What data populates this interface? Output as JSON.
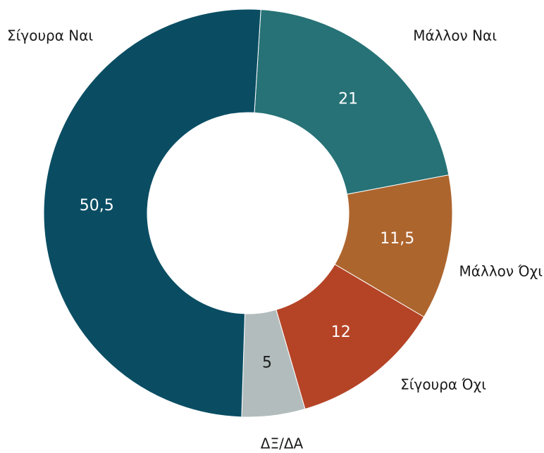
{
  "chart_data": {
    "type": "donut",
    "categories": [
      "Μάλλον Ναι",
      "Μάλλον Όχι",
      "Σίγουρα Όχι",
      "ΔΞ/ΔΑ",
      "Σίγουρα Ναι"
    ],
    "values": [
      21,
      11.5,
      12,
      5,
      50.5
    ],
    "value_labels": [
      "21",
      "11,5",
      "12",
      "5",
      "50,5"
    ],
    "colors": [
      "#267276",
      "#ad652e",
      "#b54427",
      "#b2bcbd",
      "#0a4d63"
    ]
  }
}
